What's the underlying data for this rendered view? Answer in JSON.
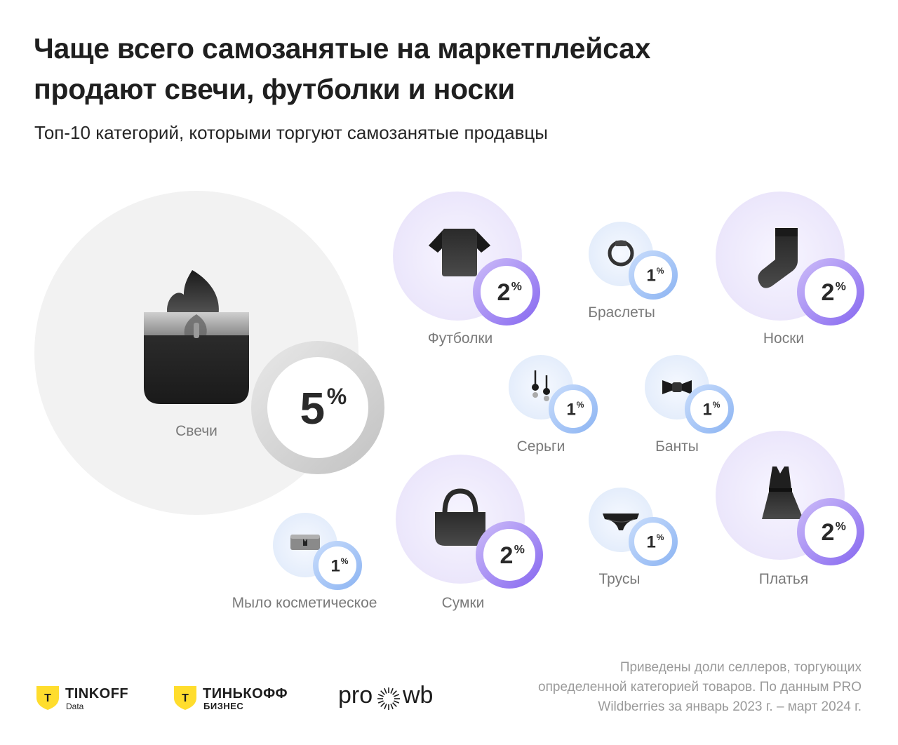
{
  "title_line1": "Чаще всего самозанятые на маркетплейсах",
  "title_line2": "продают свечи, футболки и носки",
  "subtitle": "Топ-10 категорий, которыми торгуют самозанятые продавцы",
  "chart_data": {
    "type": "bubble",
    "unit": "%",
    "items": [
      {
        "label": "Свечи",
        "value": 5,
        "icon": "candle-icon"
      },
      {
        "label": "Футболки",
        "value": 2,
        "icon": "tshirt-icon"
      },
      {
        "label": "Браслеты",
        "value": 1,
        "icon": "bracelet-icon"
      },
      {
        "label": "Носки",
        "value": 2,
        "icon": "sock-icon"
      },
      {
        "label": "Серьги",
        "value": 1,
        "icon": "earrings-icon"
      },
      {
        "label": "Банты",
        "value": 1,
        "icon": "bow-icon"
      },
      {
        "label": "Мыло косметическое",
        "value": 1,
        "icon": "soap-icon"
      },
      {
        "label": "Сумки",
        "value": 2,
        "icon": "bag-icon"
      },
      {
        "label": "Трусы",
        "value": 1,
        "icon": "underwear-icon"
      },
      {
        "label": "Платья",
        "value": 2,
        "icon": "dress-icon"
      }
    ]
  },
  "note": "Приведены доли селлеров, торгующих определенной категорией товаров. По данным PRO Wildberries за январь 2023 г. – март 2024 г.",
  "logos": {
    "tinkoff_data_main": "TINKOFF",
    "tinkoff_data_sub": "Data",
    "tinkoff_biz_main": "ТИНЬКОФФ",
    "tinkoff_biz_sub": "БИЗНЕС",
    "prowb_left": "pro",
    "prowb_right": "wb",
    "shield_letter": "T"
  },
  "colors": {
    "accent_yellow": "#ffdd2d",
    "ring_purple": "#9b7cf0",
    "ring_blue": "#9cc0f5",
    "ring_grey": "#d3d3d3",
    "big_bubble": "#f2f2f2"
  }
}
